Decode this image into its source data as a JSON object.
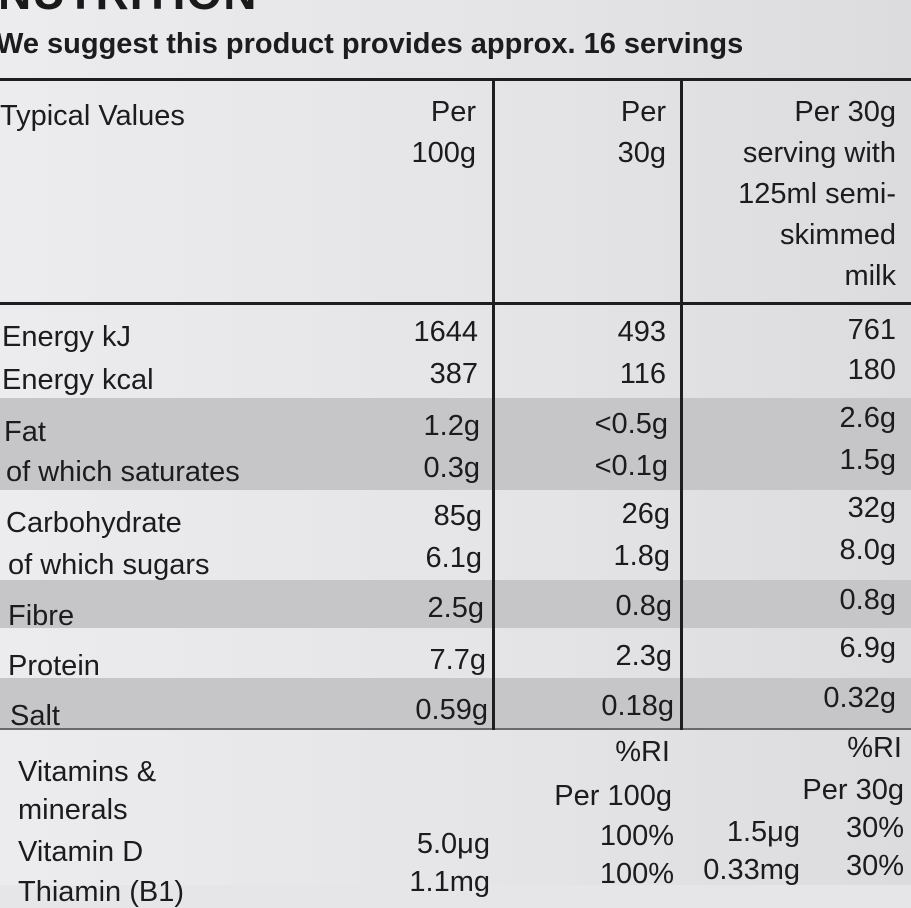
{
  "title": "NUTRITION",
  "intro": "We suggest this product provides approx. 16 servings",
  "header": {
    "typical": "Typical Values",
    "per100": [
      "Per",
      "100g"
    ],
    "per30": [
      "Per",
      "30g"
    ],
    "withmilk": [
      "Per 30g",
      "serving with",
      "125ml semi-",
      "skimmed",
      "milk"
    ]
  },
  "rows": [
    {
      "label": "Energy kJ",
      "per100": "1644",
      "per30": "493",
      "milk": "761"
    },
    {
      "label": "Energy kcal",
      "per100": "387",
      "per30": "116",
      "milk": "180"
    },
    {
      "label": "Fat",
      "per100": "1.2g",
      "per30": "<0.5g",
      "milk": "2.6g"
    },
    {
      "label": "of which saturates",
      "per100": "0.3g",
      "per30": "<0.1g",
      "milk": "1.5g"
    },
    {
      "label": "Carbohydrate",
      "per100": "85g",
      "per30": "26g",
      "milk": "32g"
    },
    {
      "label": "of which sugars",
      "per100": "6.1g",
      "per30": "1.8g",
      "milk": "8.0g"
    },
    {
      "label": "Fibre",
      "per100": "2.5g",
      "per30": "0.8g",
      "milk": "0.8g"
    },
    {
      "label": "Protein",
      "per100": "7.7g",
      "per30": "2.3g",
      "milk": "6.9g"
    },
    {
      "label": "Salt",
      "per100": "0.59g",
      "per30": "0.18g",
      "milk": "0.32g"
    }
  ],
  "vitamins": {
    "label1": "Vitamins &",
    "label2": "minerals",
    "ri1": "%RI",
    "ri2": "%RI",
    "per100": "Per 100g",
    "per30": "Per 30g",
    "items": [
      {
        "name": "Vitamin D",
        "per100": "5.0μg",
        "ri100": "100%",
        "per30": "1.5μg",
        "ri30": "30%"
      },
      {
        "name": "Thiamin (B1)",
        "per100": "1.1mg",
        "ri100": "100%",
        "per30": "0.33mg",
        "ri30": "30%"
      }
    ]
  }
}
